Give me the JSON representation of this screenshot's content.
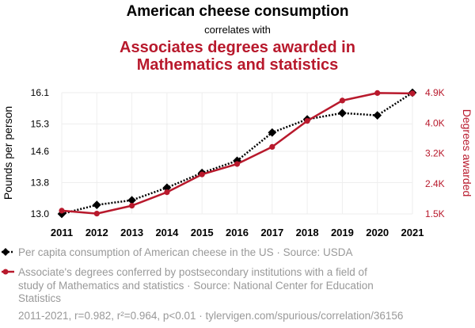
{
  "header": {
    "title": "American cheese consumption",
    "connector": "correlates with",
    "subtitle_lines": [
      "Associates degrees awarded in",
      "Mathematics and statistics"
    ]
  },
  "colors": {
    "series1": "#000000",
    "series2": "#b8192c",
    "muted": "#999999"
  },
  "chart_data": {
    "type": "line",
    "x": [
      2011,
      2012,
      2013,
      2014,
      2015,
      2016,
      2017,
      2018,
      2019,
      2020,
      2021
    ],
    "series": [
      {
        "name": "Per capita consumption of American cheese in the US · Source: USDA",
        "axis": "left",
        "color": "#000000",
        "style": "dotted",
        "marker": "diamond",
        "values": [
          13.0,
          13.23,
          13.35,
          13.67,
          14.05,
          14.36,
          15.08,
          15.42,
          15.58,
          15.52,
          16.1
        ]
      },
      {
        "name": "Associate's degrees conferred by postsecondary institutions with a field of study of Mathematics and statistics · Source: National Center for Education Statistics",
        "axis": "right",
        "color": "#b8192c",
        "style": "solid",
        "marker": "circle",
        "values": [
          1590,
          1510,
          1730,
          2110,
          2610,
          2900,
          3380,
          4110,
          4680,
          4890,
          4880
        ]
      }
    ],
    "y_left": {
      "label": "Pounds per person",
      "ticks": [
        13.0,
        13.8,
        14.6,
        15.3,
        16.1
      ],
      "tick_labels": [
        "13.0",
        "13.8",
        "14.6",
        "15.3",
        "16.1"
      ],
      "range": [
        13.0,
        16.1
      ]
    },
    "y_right": {
      "label": "Degrees awarded",
      "ticks": [
        1500,
        2350,
        3200,
        4050,
        4900
      ],
      "tick_labels": [
        "1.5K",
        "2.4K",
        "3.2K",
        "4.0K",
        "4.9K"
      ],
      "range": [
        1500,
        4900
      ]
    },
    "grid": true,
    "legend_position": "bottom"
  },
  "legend": {
    "item1_lines": [
      "Per capita consumption of American cheese in the US · Source: USDA"
    ],
    "item2_lines": [
      "Associate's degrees conferred by postsecondary institutions with a field of",
      "study of Mathematics and statistics · Source: National Center for Education",
      "Statistics"
    ]
  },
  "footer": "2011-2021, r=0.982, r²=0.964, p<0.01 · tylervigen.com/spurious/correlation/36156"
}
